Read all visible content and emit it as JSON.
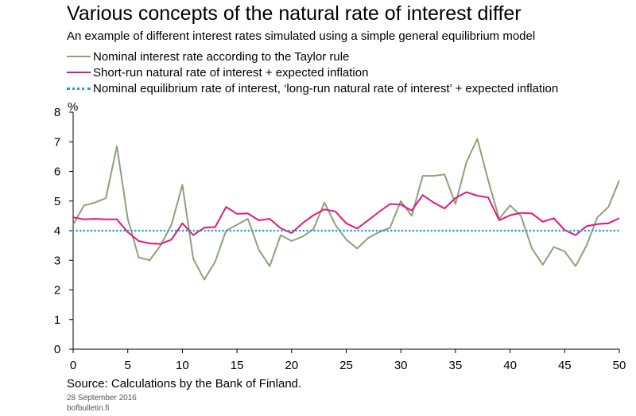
{
  "chart_data": {
    "type": "line",
    "title": "Various concepts of the natural rate of interest differ",
    "subtitle": "An example of different interest rates simulated using a simple general equilibrium model",
    "ylabel": "%",
    "xlim": [
      0,
      50
    ],
    "ylim": [
      0,
      8
    ],
    "x_ticks": [
      0,
      5,
      10,
      15,
      20,
      25,
      30,
      35,
      40,
      45,
      50
    ],
    "y_ticks": [
      0,
      1,
      2,
      3,
      4,
      5,
      6,
      7,
      8
    ],
    "grid": false,
    "legend_position": "top-left",
    "series": [
      {
        "name": "Nominal interest rate according to the Taylor rule",
        "color": "#8aa37a",
        "style": "solid",
        "x": [
          0,
          1,
          2,
          3,
          4,
          5,
          6,
          7,
          8,
          9,
          10,
          11,
          12,
          13,
          14,
          15,
          16,
          17,
          18,
          19,
          20,
          21,
          22,
          23,
          24,
          25,
          26,
          27,
          28,
          29,
          30,
          31,
          32,
          33,
          34,
          35,
          36,
          37,
          38,
          39,
          40,
          41,
          42,
          43,
          44,
          45,
          46,
          47,
          48,
          49,
          50
        ],
        "values": [
          4.2,
          4.85,
          4.95,
          5.1,
          6.85,
          4.4,
          3.1,
          3.0,
          3.5,
          4.2,
          5.55,
          3.05,
          2.35,
          2.95,
          4.0,
          4.2,
          4.4,
          3.35,
          2.8,
          3.85,
          3.65,
          3.8,
          4.05,
          4.95,
          4.2,
          3.7,
          3.4,
          3.75,
          3.95,
          4.1,
          5.0,
          4.5,
          5.85,
          5.85,
          5.9,
          4.9,
          6.3,
          7.1,
          5.7,
          4.4,
          4.85,
          4.5,
          3.4,
          2.85,
          3.45,
          3.3,
          2.8,
          3.5,
          4.45,
          4.8,
          5.7
        ]
      },
      {
        "name": "Short-run natural rate of interest + expected inflation",
        "color": "#e0187e",
        "style": "solid",
        "x": [
          0,
          1,
          2,
          3,
          4,
          5,
          6,
          7,
          8,
          9,
          10,
          11,
          12,
          13,
          14,
          15,
          16,
          17,
          18,
          19,
          20,
          21,
          22,
          23,
          24,
          25,
          26,
          27,
          28,
          29,
          30,
          31,
          32,
          33,
          34,
          35,
          36,
          37,
          38,
          39,
          40,
          41,
          42,
          43,
          44,
          45,
          46,
          47,
          48,
          49,
          50
        ],
        "values": [
          4.45,
          4.38,
          4.4,
          4.38,
          4.38,
          3.95,
          3.65,
          3.57,
          3.55,
          3.7,
          4.25,
          3.85,
          4.1,
          4.12,
          4.8,
          4.57,
          4.58,
          4.35,
          4.4,
          4.08,
          3.92,
          4.25,
          4.52,
          4.72,
          4.65,
          4.25,
          4.07,
          4.35,
          4.63,
          4.9,
          4.88,
          4.68,
          5.2,
          4.95,
          4.75,
          5.1,
          5.3,
          5.18,
          5.12,
          4.35,
          4.52,
          4.6,
          4.58,
          4.3,
          4.42,
          4.02,
          3.85,
          4.15,
          4.22,
          4.25,
          4.42
        ]
      },
      {
        "name": "Nominal equilibrium rate of interest, ‘long-run natural rate of interest’ + expected inflation",
        "color": "#1aa0d8",
        "style": "dotted",
        "x": [
          0,
          50
        ],
        "values": [
          4.0,
          4.0
        ]
      }
    ]
  },
  "footer": {
    "source": "Source: Calculations by the Bank of Finland.",
    "date": "28 September 2016",
    "site": "bofbulletin.fi"
  }
}
